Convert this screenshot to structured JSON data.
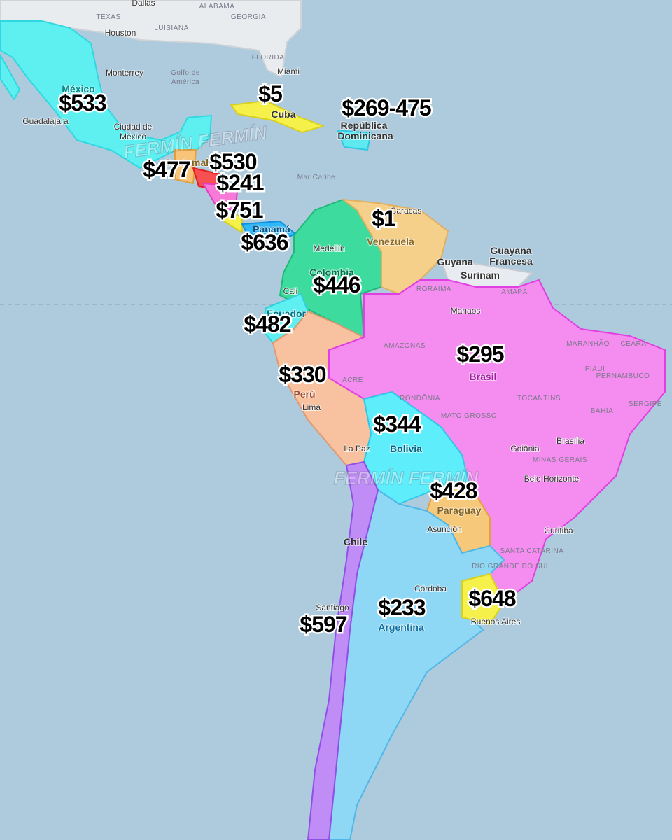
{
  "map": {
    "watermark": "FERMÍN FERMÍN",
    "prices": [
      "$533",
      "$5",
      "$269-475",
      "$477",
      "$530",
      "$241",
      "$751",
      "$636",
      "$1",
      "$446",
      "$482",
      "$295",
      "$330",
      "$344",
      "$428",
      "$648",
      "$233",
      "$597"
    ],
    "countries": [
      "México",
      "Venezuela",
      "Colombia",
      "Ecuador",
      "Brasil",
      "Perú",
      "Bolivia",
      "Paraguay",
      "Chile",
      "Argentina",
      "Panamá",
      "Guatemala",
      "Guyana",
      "Surinam",
      "Guayana",
      "Francesa",
      "República",
      "Dominicana",
      "Cuba"
    ],
    "cities": [
      "Dallas",
      "Houston",
      "Monterrey",
      "Miami",
      "Guadalajara",
      "Ciudad de",
      "México",
      "Caracas",
      "Medellín",
      "Cali",
      "Manaos",
      "Lima",
      "La Paz",
      "Brasília",
      "Goiânia",
      "Belo Horizonte",
      "Asunción",
      "Curitiba",
      "Córdoba",
      "Santiago",
      "Buenos Aires"
    ],
    "regions": [
      "TEXAS",
      "LUISIANA",
      "ALABAMA",
      "GEORGIA",
      "FLORIDA",
      "Golfo de",
      "América",
      "Mar Caribe",
      "AMAZONAS",
      "RORAIMA",
      "AMAPÁ",
      "MARANHÃO",
      "CEARÁ",
      "PIAUÍ",
      "PERNAMBUCO",
      "ACRE",
      "RONDÔNIA",
      "TOCANTINS",
      "MATO GROSSO",
      "BAHÍA",
      "SERGIPE",
      "MINAS GERAIS",
      "SANTA CATARINA",
      "RIO GRANDE DO SUL"
    ]
  }
}
